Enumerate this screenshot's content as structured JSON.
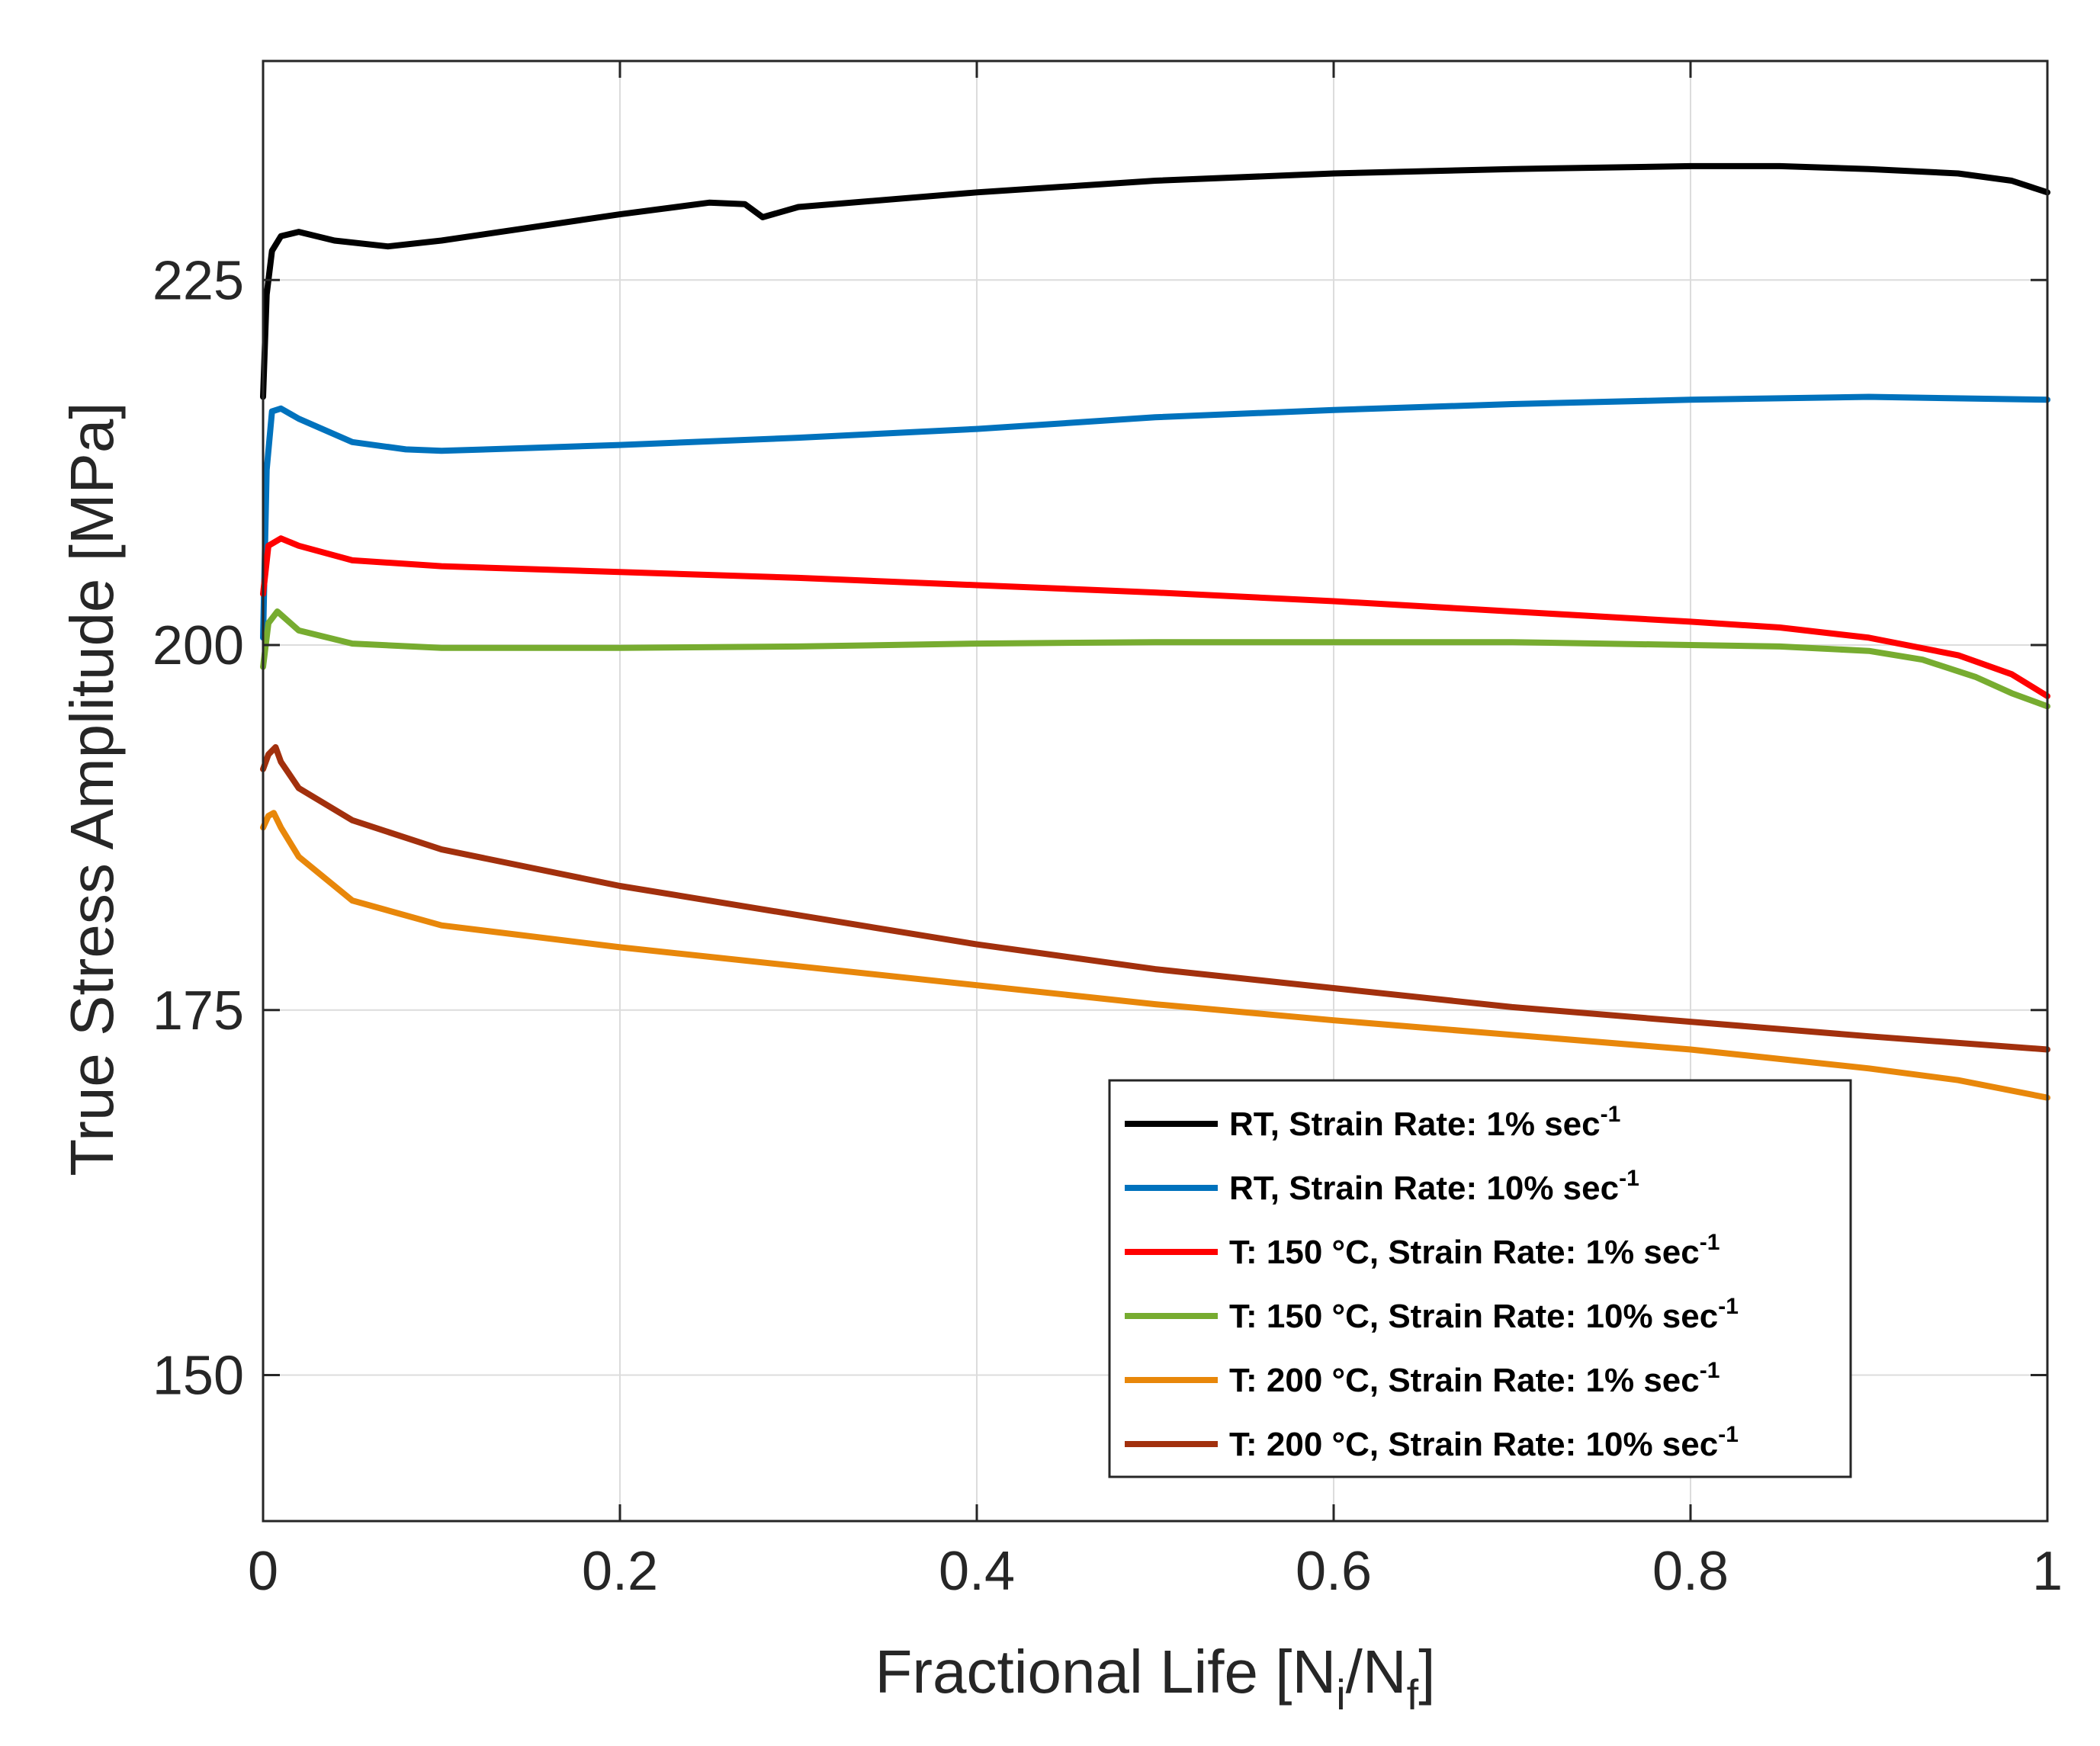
{
  "chart_data": {
    "type": "line",
    "title": "",
    "xlabel": {
      "base": "Fractional Life [N",
      "sub1": "i",
      "mid": "/N",
      "sub2": "f",
      "end": "]"
    },
    "ylabel": "True Stress Amplitude [MPa]",
    "xlim": [
      0,
      1
    ],
    "ylim": [
      140,
      240
    ],
    "xticks": [
      0,
      0.2,
      0.4,
      0.6,
      0.8,
      1
    ],
    "xtick_labels": [
      "0",
      "0.2",
      "0.4",
      "0.6",
      "0.8",
      "1"
    ],
    "yticks": [
      150,
      175,
      200,
      225
    ],
    "ytick_labels": [
      "150",
      "175",
      "200",
      "225"
    ],
    "grid": true,
    "legend_position": "bottom-right",
    "series": [
      {
        "name": "RT, Strain Rate: 1% sec",
        "superscript": "-1",
        "color": "#000000",
        "x": [
          0,
          0.002,
          0.005,
          0.01,
          0.02,
          0.04,
          0.07,
          0.1,
          0.15,
          0.2,
          0.25,
          0.27,
          0.28,
          0.3,
          0.4,
          0.5,
          0.6,
          0.7,
          0.8,
          0.85,
          0.9,
          0.95,
          0.98,
          1.0
        ],
        "y": [
          217,
          224,
          227,
          228,
          228.3,
          227.7,
          227.3,
          227.7,
          228.6,
          229.5,
          230.3,
          230.2,
          229.3,
          230,
          231,
          231.8,
          232.3,
          232.6,
          232.8,
          232.8,
          232.6,
          232.3,
          231.8,
          231
        ]
      },
      {
        "name": "RT, Strain Rate: 10% sec",
        "superscript": "-1",
        "color": "#0072BD",
        "x": [
          0,
          0.002,
          0.005,
          0.01,
          0.02,
          0.05,
          0.08,
          0.1,
          0.15,
          0.2,
          0.3,
          0.4,
          0.5,
          0.6,
          0.7,
          0.8,
          0.9,
          1.0
        ],
        "y": [
          200.5,
          212,
          216,
          216.2,
          215.5,
          213.9,
          213.4,
          213.3,
          213.5,
          213.7,
          214.2,
          214.8,
          215.6,
          216.1,
          216.5,
          216.8,
          217,
          216.8
        ]
      },
      {
        "name": "T: 150 °C, Strain Rate: 1% sec",
        "superscript": "-1",
        "color": "#FF0000",
        "x": [
          0,
          0.003,
          0.01,
          0.02,
          0.05,
          0.1,
          0.2,
          0.3,
          0.4,
          0.5,
          0.6,
          0.7,
          0.8,
          0.85,
          0.9,
          0.95,
          0.98,
          1.0
        ],
        "y": [
          203.5,
          206.8,
          207.3,
          206.8,
          205.8,
          205.4,
          205,
          204.6,
          204.1,
          203.6,
          203,
          202.3,
          201.6,
          201.2,
          200.5,
          199.3,
          198,
          196.5
        ]
      },
      {
        "name": "T: 150 °C, Strain Rate: 10% sec",
        "superscript": "-1",
        "color": "#77AC30",
        "x": [
          0,
          0.003,
          0.008,
          0.02,
          0.05,
          0.1,
          0.2,
          0.3,
          0.4,
          0.5,
          0.6,
          0.7,
          0.8,
          0.85,
          0.9,
          0.93,
          0.96,
          0.98,
          1.0
        ],
        "y": [
          198.5,
          201.5,
          202.3,
          201,
          200.1,
          199.8,
          199.8,
          199.9,
          200.1,
          200.2,
          200.2,
          200.2,
          200,
          199.9,
          199.6,
          199,
          197.8,
          196.7,
          195.8
        ]
      },
      {
        "name": "T: 200 °C, Strain Rate: 1% sec",
        "superscript": "-1",
        "color": "#E8870A",
        "x": [
          0,
          0.003,
          0.006,
          0.01,
          0.02,
          0.05,
          0.1,
          0.2,
          0.3,
          0.4,
          0.5,
          0.6,
          0.7,
          0.8,
          0.9,
          0.95,
          1.0
        ],
        "y": [
          187.5,
          188.3,
          188.5,
          187.5,
          185.5,
          182.5,
          180.8,
          179.3,
          178,
          176.7,
          175.4,
          174.3,
          173.3,
          172.3,
          171,
          170.2,
          169
        ]
      },
      {
        "name": "T: 200 °C, Strain Rate: 10% sec",
        "superscript": "-1",
        "color": "#A2300D",
        "x": [
          0,
          0.003,
          0.007,
          0.01,
          0.02,
          0.05,
          0.1,
          0.2,
          0.3,
          0.4,
          0.5,
          0.6,
          0.7,
          0.8,
          0.9,
          1.0
        ],
        "y": [
          191.5,
          192.5,
          193,
          192,
          190.2,
          188,
          186,
          183.5,
          181.5,
          179.5,
          177.8,
          176.5,
          175.2,
          174.2,
          173.2,
          172.3
        ]
      }
    ]
  }
}
